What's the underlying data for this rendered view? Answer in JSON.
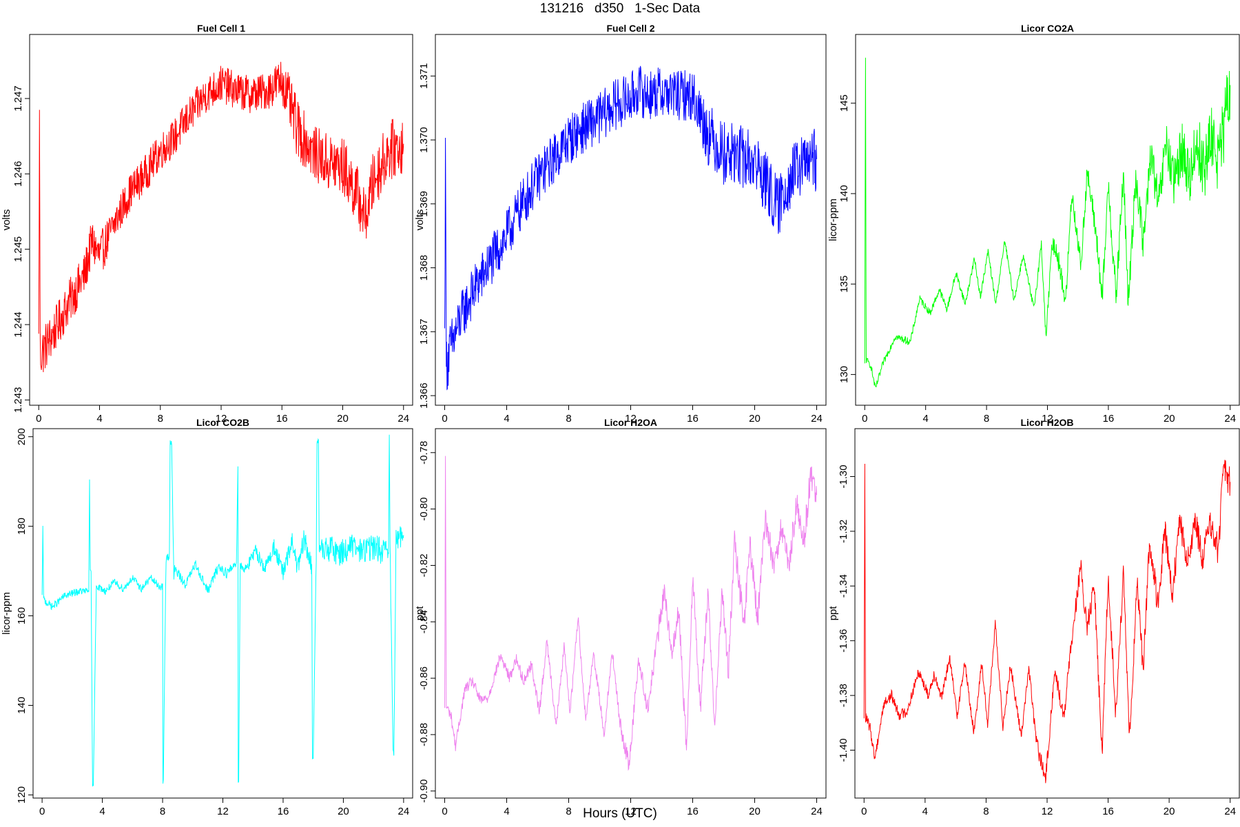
{
  "figure": {
    "title": "131216   d350   1-Sec Data",
    "xlabel": "Hours (UTC)"
  },
  "chart_data": [
    {
      "type": "line",
      "title": "Fuel Cell 1",
      "ylabel": "volts",
      "color": "#ff0000",
      "xlim": [
        -0.6,
        24.6
      ],
      "ylim": [
        1.24293,
        1.24785
      ],
      "xticks": [
        0,
        4,
        8,
        12,
        16,
        20,
        24
      ],
      "yticks": [
        1.243,
        1.244,
        1.245,
        1.246,
        1.247
      ],
      "ytick_labels": [
        "1.243",
        "1.244",
        "1.245",
        "1.246",
        "1.247"
      ],
      "series": [
        {
          "x": [
            0,
            0.05,
            0.1,
            1,
            2,
            3,
            3.5,
            4,
            5,
            6,
            7,
            8,
            9,
            10,
            11,
            12,
            13,
            14,
            15,
            16,
            16.5,
            17,
            18,
            19,
            20,
            21,
            21.5,
            22,
            23,
            24
          ],
          "y": [
            1.24375,
            1.2468,
            1.2436,
            1.2439,
            1.2443,
            1.24465,
            1.2451,
            1.2449,
            1.24535,
            1.24575,
            1.246,
            1.2463,
            1.2465,
            1.2468,
            1.24705,
            1.2472,
            1.2471,
            1.24705,
            1.2471,
            1.24725,
            1.24695,
            1.2466,
            1.2463,
            1.24615,
            1.2461,
            1.2457,
            1.2454,
            1.2459,
            1.2463,
            1.2464
          ],
          "band": [
            0.0003,
            0.0001,
            0.00035,
            0.0003,
            0.0003,
            0.0003,
            0.0003,
            0.0003,
            0.00025,
            0.00025,
            0.00025,
            0.00025,
            0.00025,
            0.00025,
            0.00025,
            0.00025,
            0.00025,
            0.00025,
            0.00025,
            0.0003,
            0.00035,
            0.0004,
            0.00035,
            0.0004,
            0.0004,
            0.0004,
            0.00035,
            0.0004,
            0.0004,
            0.0004
          ]
        }
      ]
    },
    {
      "type": "line",
      "title": "Fuel Cell 2",
      "ylabel": "volts",
      "color": "#0000ff",
      "xlim": [
        -0.6,
        24.6
      ],
      "ylim": [
        1.36585,
        1.37165
      ],
      "xticks": [
        0,
        4,
        8,
        12,
        16,
        20,
        24
      ],
      "yticks": [
        1.366,
        1.367,
        1.368,
        1.369,
        1.37,
        1.371
      ],
      "ytick_labels": [
        "1.366",
        "1.367",
        "1.368",
        "1.369",
        "1.370",
        "1.371"
      ],
      "series": [
        {
          "x": [
            0,
            0.05,
            0.1,
            1,
            2,
            3,
            4,
            5,
            6,
            7,
            8,
            9,
            10,
            11,
            12,
            12.5,
            13,
            14,
            15,
            16,
            17,
            18,
            19,
            20,
            21,
            21.5,
            22,
            23,
            24
          ],
          "y": [
            1.3668,
            1.3701,
            1.3665,
            1.3672,
            1.3677,
            1.3681,
            1.3685,
            1.369,
            1.3694,
            1.3697,
            1.37,
            1.3702,
            1.37035,
            1.37055,
            1.37065,
            1.3708,
            1.3707,
            1.37075,
            1.3707,
            1.3707,
            1.3701,
            1.3698,
            1.36975,
            1.36965,
            1.3692,
            1.3689,
            1.3693,
            1.3696,
            1.3697
          ],
          "band": [
            0.0005,
            0.0001,
            0.0005,
            0.0004,
            0.0004,
            0.0004,
            0.0004,
            0.0004,
            0.0004,
            0.0004,
            0.0004,
            0.0004,
            0.0004,
            0.0004,
            0.0004,
            0.0004,
            0.0004,
            0.0004,
            0.0004,
            0.0004,
            0.0005,
            0.0005,
            0.0005,
            0.0005,
            0.0005,
            0.0005,
            0.0005,
            0.0005,
            0.0005
          ]
        }
      ]
    },
    {
      "type": "line",
      "title": "Licor CO2A",
      "ylabel": "licor-ppm",
      "color": "#00ff00",
      "xlim": [
        -0.6,
        24.6
      ],
      "ylim": [
        128.3,
        148.8
      ],
      "xticks": [
        0,
        4,
        8,
        12,
        16,
        20,
        24
      ],
      "yticks": [
        130,
        135,
        140,
        145
      ],
      "ytick_labels": [
        "130",
        "135",
        "140",
        "145"
      ],
      "series": [
        {
          "x": [
            0,
            0.05,
            0.1,
            0.4,
            0.7,
            1.2,
            2,
            3,
            3.6,
            4.3,
            4.9,
            5.4,
            6,
            6.6,
            7.2,
            7.6,
            8.1,
            8.6,
            9.2,
            9.8,
            10.4,
            11.1,
            11.6,
            11.9,
            12.3,
            12.6,
            13.2,
            13.6,
            14.2,
            14.6,
            15.2,
            15.6,
            16,
            16.5,
            17,
            17.3,
            17.8,
            18.3,
            18.8,
            19.3,
            19.8,
            20.3,
            20.8,
            21.3,
            21.8,
            22.3,
            22.8,
            23.3,
            24
          ],
          "y": [
            130.5,
            147.5,
            130.8,
            130.5,
            129.2,
            130.6,
            132.1,
            131.8,
            134.2,
            133.4,
            134.7,
            133.6,
            135.6,
            133.9,
            136.4,
            134.3,
            136.8,
            133.9,
            137.4,
            134.1,
            136.6,
            133.6,
            137.2,
            132.0,
            137.2,
            136.9,
            134.0,
            140.1,
            136.0,
            141.2,
            137.8,
            134.0,
            140.6,
            134.2,
            141.2,
            133.8,
            141.0,
            137.2,
            142.3,
            139.2,
            142.9,
            140.4,
            142.6,
            140.8,
            142.9,
            141.3,
            143.2,
            141.8,
            146.0
          ],
          "band": [
            0.2,
            0.1,
            0.2,
            0.2,
            0.2,
            0.2,
            0.2,
            0.2,
            0.2,
            0.2,
            0.2,
            0.2,
            0.2,
            0.2,
            0.2,
            0.2,
            0.2,
            0.2,
            0.2,
            0.2,
            0.2,
            0.3,
            0.3,
            0.3,
            0.4,
            0.6,
            0.6,
            0.6,
            0.6,
            0.7,
            0.7,
            0.8,
            0.8,
            0.9,
            0.9,
            0.9,
            1.0,
            1.0,
            1.1,
            1.2,
            1.3,
            1.4,
            1.5,
            1.6,
            1.7,
            1.8,
            1.9,
            2.0,
            2.0
          ]
        }
      ]
    },
    {
      "type": "line",
      "title": "Licor CO2B",
      "ylabel": "licor-ppm",
      "color": "#00ffff",
      "xlim": [
        -0.6,
        24.6
      ],
      "ylim": [
        119.3,
        201.8
      ],
      "xticks": [
        0,
        4,
        8,
        12,
        16,
        20,
        24
      ],
      "yticks": [
        120,
        140,
        160,
        180,
        200
      ],
      "ytick_labels": [
        "120",
        "140",
        "160",
        "180",
        "200"
      ],
      "series": [
        {
          "x": [
            0,
            0.05,
            0.1,
            0.7,
            1.5,
            2.5,
            3.1,
            3.15,
            3.2,
            3.25,
            3.35,
            3.4,
            3.6,
            3.7,
            4.2,
            4.8,
            5.4,
            6.0,
            6.6,
            7.2,
            7.8,
            8.0,
            8.02,
            8.05,
            8.2,
            8.23,
            8.3,
            8.45,
            8.5,
            8.6,
            8.75,
            8.8,
            9.5,
            10.2,
            11.0,
            11.7,
            12.3,
            12.9,
            13.0,
            13.02,
            13.05,
            13.15,
            13.2,
            13.3,
            13.7,
            14.2,
            14.8,
            15.4,
            16.0,
            16.6,
            17.0,
            17.4,
            17.9,
            17.95,
            18.0,
            18.2,
            18.25,
            18.35,
            18.4,
            18.55,
            18.6,
            19.2,
            19.8,
            20.5,
            21.2,
            22.0,
            22.8,
            23.0,
            23.05,
            23.1,
            23.3,
            23.35,
            23.5,
            23.6,
            24
          ],
          "y": [
            164,
            180,
            163.5,
            162,
            164.5,
            165.5,
            165.5,
            190.5,
            169.5,
            169,
            122,
            122,
            167,
            166.5,
            165.5,
            167.5,
            166,
            168.5,
            166,
            168.5,
            166.5,
            166.5,
            122.5,
            123,
            167,
            172,
            173,
            173,
            199,
            198.5,
            168,
            170.5,
            167,
            171.5,
            165.5,
            171,
            169.5,
            172,
            193.5,
            123,
            123,
            171,
            171.5,
            170.5,
            171.5,
            174.5,
            170.5,
            175.5,
            169.5,
            176.5,
            170.5,
            177,
            171,
            127.5,
            128,
            174.5,
            199,
            199,
            174.5,
            175,
            174.5,
            175,
            174,
            175.5,
            174.5,
            175.5,
            174,
            174.5,
            200.5,
            175,
            129,
            129,
            177.5,
            178,
            178
          ],
          "band": [
            1.0,
            0.1,
            1.0,
            0.8,
            0.8,
            0.8,
            0.8,
            0.1,
            1.0,
            1.0,
            0.4,
            0.4,
            0.8,
            0.8,
            0.8,
            0.8,
            0.8,
            0.8,
            0.8,
            0.8,
            0.8,
            0.8,
            0.4,
            0.4,
            0.8,
            1.0,
            1.0,
            1.0,
            0.6,
            0.6,
            1.0,
            1.0,
            1.0,
            1.0,
            1.0,
            1.2,
            1.2,
            1.2,
            0.2,
            0.4,
            0.4,
            1.2,
            1.4,
            1.4,
            1.4,
            1.6,
            1.6,
            1.8,
            2.0,
            2.2,
            2.4,
            2.6,
            2.6,
            0.6,
            0.6,
            2.6,
            0.6,
            0.6,
            2.6,
            2.8,
            2.8,
            3.0,
            3.0,
            3.0,
            3.0,
            3.0,
            3.0,
            3.0,
            0.2,
            3.0,
            1.0,
            1.0,
            3.0,
            3.0,
            3.0
          ]
        }
      ]
    },
    {
      "type": "line",
      "title": "Licor H2OA",
      "ylabel": "ppt",
      "color": "#ee82ee",
      "xlim": [
        -0.6,
        24.6
      ],
      "ylim": [
        -0.9025,
        -0.7715
      ],
      "xticks": [
        0,
        4,
        8,
        12,
        16,
        20,
        24
      ],
      "yticks": [
        -0.9,
        -0.88,
        -0.86,
        -0.84,
        -0.82,
        -0.8,
        -0.78
      ],
      "ytick_labels": [
        "-0.90",
        "-0.88",
        "-0.86",
        "-0.84",
        "-0.82",
        "-0.80",
        "-0.78"
      ],
      "series": [
        {
          "x": [
            0,
            0.05,
            0.1,
            0.4,
            0.7,
            1.3,
            1.8,
            2.3,
            2.8,
            3.6,
            4.2,
            4.6,
            5.1,
            5.6,
            6.1,
            6.6,
            7.2,
            7.7,
            8.1,
            8.6,
            9.1,
            9.6,
            10.3,
            10.8,
            11.3,
            11.9,
            12.5,
            13.1,
            13.7,
            14.2,
            14.6,
            15.1,
            15.6,
            16.0,
            16.5,
            17.0,
            17.4,
            17.9,
            18.3,
            18.7,
            19.3,
            19.7,
            20.2,
            20.7,
            21.2,
            21.7,
            22.2,
            22.7,
            23.2,
            23.6,
            24
          ],
          "y": [
            -0.872,
            -0.781,
            -0.87,
            -0.873,
            -0.884,
            -0.864,
            -0.861,
            -0.868,
            -0.867,
            -0.852,
            -0.86,
            -0.853,
            -0.861,
            -0.855,
            -0.872,
            -0.847,
            -0.877,
            -0.849,
            -0.872,
            -0.838,
            -0.875,
            -0.851,
            -0.88,
            -0.85,
            -0.876,
            -0.891,
            -0.853,
            -0.871,
            -0.847,
            -0.828,
            -0.852,
            -0.836,
            -0.885,
            -0.824,
            -0.87,
            -0.829,
            -0.877,
            -0.829,
            -0.858,
            -0.812,
            -0.841,
            -0.813,
            -0.839,
            -0.803,
            -0.82,
            -0.807,
            -0.821,
            -0.798,
            -0.812,
            -0.787,
            -0.795
          ],
          "band": [
            0.002,
            0.001,
            0.002,
            0.002,
            0.002,
            0.002,
            0.002,
            0.002,
            0.002,
            0.002,
            0.002,
            0.002,
            0.002,
            0.002,
            0.002,
            0.002,
            0.002,
            0.002,
            0.002,
            0.002,
            0.002,
            0.002,
            0.002,
            0.002,
            0.003,
            0.003,
            0.003,
            0.003,
            0.004,
            0.004,
            0.004,
            0.004,
            0.004,
            0.004,
            0.004,
            0.004,
            0.004,
            0.004,
            0.005,
            0.005,
            0.005,
            0.005,
            0.005,
            0.005,
            0.005,
            0.005,
            0.005,
            0.005,
            0.006,
            0.006,
            0.006
          ]
        }
      ]
    },
    {
      "type": "line",
      "title": "Licor H2OB",
      "ylabel": "ppt",
      "color": "#ff0000",
      "xlim": [
        -0.6,
        24.6
      ],
      "ylim": [
        -1.4175,
        -1.2825
      ],
      "xticks": [
        0,
        4,
        8,
        12,
        16,
        20,
        24
      ],
      "yticks": [
        -1.4,
        -1.38,
        -1.36,
        -1.34,
        -1.32,
        -1.3
      ],
      "ytick_labels": [
        "-1.40",
        "-1.38",
        "-1.36",
        "-1.34",
        "-1.32",
        "-1.30"
      ],
      "series": [
        {
          "x": [
            0,
            0.05,
            0.1,
            0.4,
            0.7,
            1.3,
            1.8,
            2.3,
            2.8,
            3.6,
            4.2,
            4.6,
            5.1,
            5.6,
            6.1,
            6.6,
            7.2,
            7.7,
            8.1,
            8.6,
            9.1,
            9.6,
            10.3,
            10.8,
            11.3,
            11.9,
            12.5,
            13.1,
            13.7,
            14.2,
            14.6,
            15.1,
            15.6,
            16.0,
            16.5,
            17.0,
            17.4,
            17.9,
            18.3,
            18.7,
            19.3,
            19.7,
            20.2,
            20.7,
            21.2,
            21.7,
            22.2,
            22.7,
            23.2,
            23.6,
            24
          ],
          "y": [
            -1.39,
            -1.296,
            -1.388,
            -1.392,
            -1.403,
            -1.383,
            -1.38,
            -1.387,
            -1.386,
            -1.371,
            -1.38,
            -1.372,
            -1.381,
            -1.366,
            -1.387,
            -1.368,
            -1.394,
            -1.368,
            -1.39,
            -1.354,
            -1.391,
            -1.369,
            -1.395,
            -1.37,
            -1.397,
            -1.411,
            -1.371,
            -1.388,
            -1.355,
            -1.333,
            -1.356,
            -1.34,
            -1.402,
            -1.336,
            -1.387,
            -1.336,
            -1.396,
            -1.339,
            -1.37,
            -1.325,
            -1.348,
            -1.318,
            -1.344,
            -1.316,
            -1.332,
            -1.316,
            -1.33,
            -1.317,
            -1.327,
            -1.297,
            -1.302
          ],
          "band": [
            0.002,
            0.001,
            0.002,
            0.002,
            0.002,
            0.002,
            0.002,
            0.002,
            0.002,
            0.002,
            0.002,
            0.002,
            0.002,
            0.002,
            0.002,
            0.002,
            0.002,
            0.002,
            0.002,
            0.002,
            0.002,
            0.002,
            0.002,
            0.002,
            0.003,
            0.003,
            0.003,
            0.003,
            0.003,
            0.004,
            0.004,
            0.004,
            0.004,
            0.004,
            0.004,
            0.004,
            0.004,
            0.004,
            0.005,
            0.005,
            0.005,
            0.005,
            0.005,
            0.005,
            0.005,
            0.005,
            0.005,
            0.005,
            0.006,
            0.006,
            0.006
          ]
        }
      ]
    }
  ]
}
